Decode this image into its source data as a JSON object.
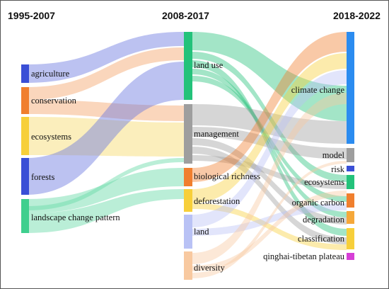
{
  "periods": [
    "1995-2007",
    "2008-2017",
    "2018-2022"
  ],
  "left_nodes": [
    {
      "id": "agriculture",
      "label": "agriculture",
      "color": "#3a4fd6"
    },
    {
      "id": "conservation",
      "label": "conservation",
      "color": "#f07f2e"
    },
    {
      "id": "ecosystems_l",
      "label": "ecosystems",
      "color": "#f7cf3a"
    },
    {
      "id": "forests",
      "label": "forests",
      "color": "#3a4fd6"
    },
    {
      "id": "landscape",
      "label": "landscape change pattern",
      "color": "#3fcf8e"
    }
  ],
  "middle_nodes": [
    {
      "id": "landuse",
      "label": "land use",
      "color": "#23c27a"
    },
    {
      "id": "management",
      "label": "management",
      "color": "#9e9e9e"
    },
    {
      "id": "biorich",
      "label": "biological richness",
      "color": "#f07f2e"
    },
    {
      "id": "deforest",
      "label": "deforestation",
      "color": "#f7cf3a"
    },
    {
      "id": "land",
      "label": "land",
      "color": "#b9c2f5"
    },
    {
      "id": "diversity",
      "label": "diversity",
      "color": "#f8c9a0"
    }
  ],
  "right_nodes": [
    {
      "id": "climate",
      "label": "climate change",
      "color": "#2b8cf0"
    },
    {
      "id": "model",
      "label": "model",
      "color": "#9e9e9e"
    },
    {
      "id": "risk",
      "label": "risk",
      "color": "#3a4fd6"
    },
    {
      "id": "ecosystems_r",
      "label": "ecosystems",
      "color": "#23c27a"
    },
    {
      "id": "organic",
      "label": "organic carbon",
      "color": "#f07f2e"
    },
    {
      "id": "degradation",
      "label": "degradation",
      "color": "#f5a83a"
    },
    {
      "id": "classification",
      "label": "classification",
      "color": "#f7cf3a"
    },
    {
      "id": "qinghai",
      "label": "qinghai-tibetan plateau",
      "color": "#d63fd6"
    }
  ]
}
